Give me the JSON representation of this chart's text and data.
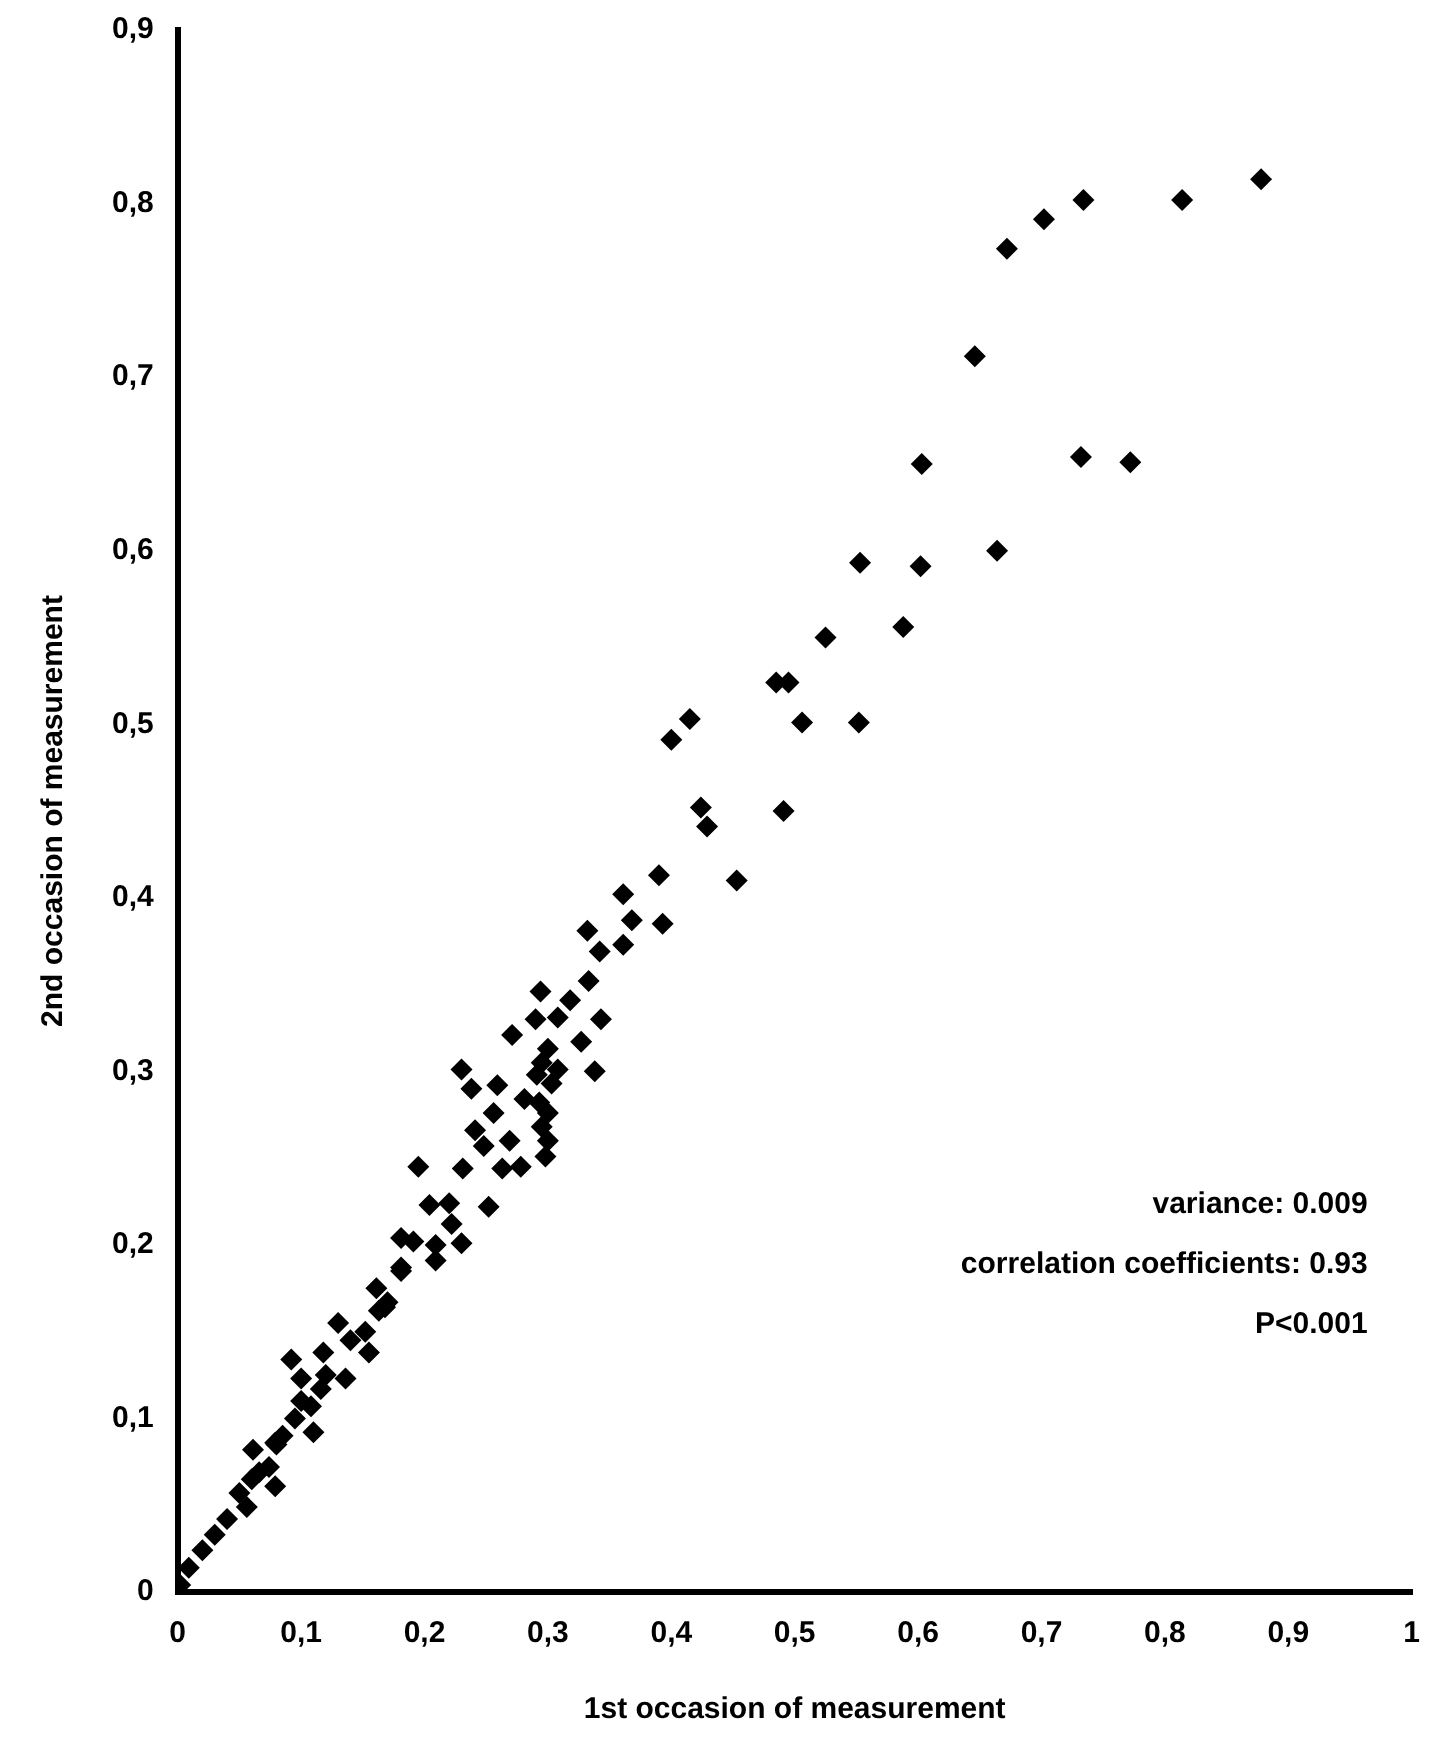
{
  "chart_data": {
    "type": "scatter",
    "xlabel": "1st occasion of measurement",
    "ylabel": "2nd occasion of measurement",
    "annotations": [
      "variance: 0.009",
      "correlation coefficients: 0.93",
      "P<0.001"
    ],
    "marker": "diamond",
    "grid": false,
    "legend": false,
    "xlim": [
      0,
      1
    ],
    "ylim": [
      0,
      0.9
    ],
    "xticks": [
      0,
      {
        "value": 0.1,
        "label": "0,1"
      },
      {
        "value": 0.2,
        "label": "0,2"
      },
      {
        "value": 0.3,
        "label": "0,3"
      },
      {
        "value": 0.4,
        "label": "0,4"
      },
      {
        "value": 0.5,
        "label": "0,5"
      },
      {
        "value": 0.6,
        "label": "0,6"
      },
      {
        "value": 0.7,
        "label": "0,7"
      },
      {
        "value": 0.8,
        "label": "0,8"
      },
      {
        "value": 0.9,
        "label": "0,9"
      },
      1
    ],
    "yticks": [
      0,
      {
        "value": 0.1,
        "label": "0,1"
      },
      {
        "value": 0.2,
        "label": "0,2"
      },
      {
        "value": 0.3,
        "label": "0,3"
      },
      {
        "value": 0.4,
        "label": "0,4"
      },
      {
        "value": 0.5,
        "label": "0,5"
      },
      {
        "value": 0.6,
        "label": "0,6"
      },
      {
        "value": 0.7,
        "label": "0,7"
      },
      {
        "value": 0.8,
        "label": "0,8"
      },
      {
        "value": 0.9,
        "label": "0,9"
      }
    ],
    "series": [
      {
        "color": "#000000",
        "x": [
          0.878,
          0.814,
          0.734,
          0.702,
          0.672,
          0.646,
          0.603,
          0.732,
          0.772,
          0.553,
          0.602,
          0.664,
          0.525,
          0.588,
          0.495,
          0.485,
          0.506,
          0.552,
          0.491,
          0.415,
          0.4,
          0.424,
          0.429,
          0.453,
          0.39,
          0.393,
          0.361,
          0.368,
          0.361,
          0.332,
          0.342,
          0.333,
          0.318,
          0.294,
          0.29,
          0.308,
          0.343,
          0.327,
          0.338,
          0.271,
          0.3,
          0.295,
          0.308,
          0.291,
          0.303,
          0.23,
          0.238,
          0.259,
          0.281,
          0.293,
          0.3,
          0.256,
          0.295,
          0.241,
          0.269,
          0.3,
          0.248,
          0.298,
          0.231,
          0.195,
          0.263,
          0.278,
          0.204,
          0.22,
          0.252,
          0.222,
          0.181,
          0.191,
          0.23,
          0.209,
          0.209,
          0.181,
          0.17,
          0.181,
          0.161,
          0.168,
          0.163,
          0.13,
          0.152,
          0.155,
          0.118,
          0.092,
          0.136,
          0.1,
          0.116,
          0.108,
          0.095,
          0.11,
          0.061,
          0.079,
          0.079,
          0.074,
          0.066,
          0.05,
          0.056,
          0.04,
          0.03,
          0.02,
          0.009,
          0.002,
          0.06,
          0.085,
          0.1,
          0.12,
          0.14,
          0.08
        ],
        "values": [
          0.814,
          0.802,
          0.802,
          0.791,
          0.774,
          0.712,
          0.65,
          0.654,
          0.651,
          0.593,
          0.591,
          0.6,
          0.55,
          0.556,
          0.524,
          0.524,
          0.501,
          0.501,
          0.45,
          0.503,
          0.491,
          0.452,
          0.441,
          0.41,
          0.413,
          0.385,
          0.402,
          0.387,
          0.373,
          0.381,
          0.369,
          0.352,
          0.341,
          0.346,
          0.33,
          0.331,
          0.33,
          0.317,
          0.3,
          0.321,
          0.313,
          0.305,
          0.301,
          0.298,
          0.293,
          0.301,
          0.29,
          0.292,
          0.284,
          0.282,
          0.276,
          0.276,
          0.268,
          0.266,
          0.26,
          0.26,
          0.257,
          0.251,
          0.244,
          0.245,
          0.244,
          0.245,
          0.223,
          0.224,
          0.222,
          0.212,
          0.204,
          0.202,
          0.201,
          0.2,
          0.191,
          0.187,
          0.167,
          0.185,
          0.175,
          0.164,
          0.162,
          0.155,
          0.15,
          0.138,
          0.138,
          0.134,
          0.123,
          0.123,
          0.117,
          0.107,
          0.1,
          0.092,
          0.082,
          0.086,
          0.061,
          0.072,
          0.069,
          0.057,
          0.049,
          0.042,
          0.033,
          0.024,
          0.014,
          0.004,
          0.065,
          0.09,
          0.11,
          0.125,
          0.145,
          0.085
        ]
      }
    ]
  }
}
